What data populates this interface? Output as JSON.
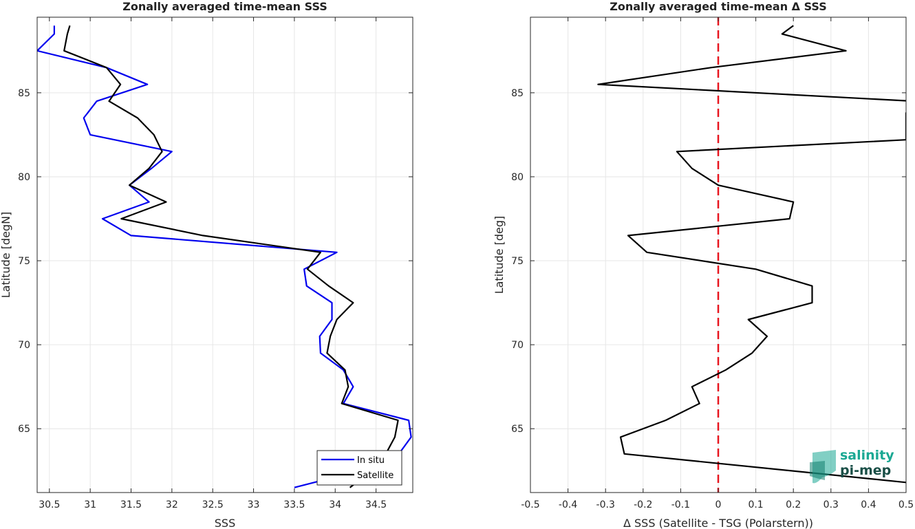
{
  "chart_data": [
    {
      "type": "line",
      "title": "Zonally averaged time-mean SSS",
      "xlabel": "SSS",
      "ylabel": "Latitude [degN]",
      "xlim": [
        30.35,
        34.95
      ],
      "ylim": [
        61.2,
        89.5
      ],
      "xticks": [
        30.5,
        31,
        31.5,
        32,
        32.5,
        33,
        33.5,
        34,
        34.5
      ],
      "xtick_labels": [
        "30.5",
        "31",
        "31.5",
        "32",
        "32.5",
        "33",
        "33.5",
        "34",
        "34.5"
      ],
      "yticks": [
        65,
        70,
        75,
        80,
        85
      ],
      "ytick_labels": [
        "65",
        "70",
        "75",
        "80",
        "85"
      ],
      "grid": true,
      "legend_position": "bottom-right",
      "series": [
        {
          "name": "In situ",
          "color": "#0000ee",
          "points": [
            [
              30.56,
              89.0
            ],
            [
              30.56,
              88.5
            ],
            [
              30.35,
              87.5
            ],
            [
              31.2,
              86.5
            ],
            [
              31.7,
              85.5
            ],
            [
              31.08,
              84.5
            ],
            [
              30.92,
              83.5
            ],
            [
              31.0,
              82.5
            ],
            [
              32.0,
              81.5
            ],
            [
              31.75,
              80.5
            ],
            [
              31.48,
              79.5
            ],
            [
              31.72,
              78.5
            ],
            [
              31.15,
              77.5
            ],
            [
              31.5,
              76.5
            ],
            [
              34.02,
              75.5
            ],
            [
              33.62,
              74.5
            ],
            [
              33.65,
              73.5
            ],
            [
              33.96,
              72.5
            ],
            [
              33.96,
              71.5
            ],
            [
              33.81,
              70.5
            ],
            [
              33.82,
              69.5
            ],
            [
              34.1,
              68.5
            ],
            [
              34.22,
              67.5
            ],
            [
              34.1,
              66.5
            ],
            [
              34.9,
              65.5
            ],
            [
              34.93,
              64.5
            ],
            [
              34.78,
              63.5
            ],
            [
              34.3,
              62.5
            ],
            [
              33.5,
              61.5
            ]
          ]
        },
        {
          "name": "Satellite",
          "color": "#000000",
          "points": [
            [
              30.75,
              89.0
            ],
            [
              30.72,
              88.5
            ],
            [
              30.68,
              87.5
            ],
            [
              31.2,
              86.5
            ],
            [
              31.37,
              85.5
            ],
            [
              31.23,
              84.5
            ],
            [
              31.58,
              83.5
            ],
            [
              31.78,
              82.5
            ],
            [
              31.88,
              81.5
            ],
            [
              31.72,
              80.5
            ],
            [
              31.48,
              79.5
            ],
            [
              31.93,
              78.5
            ],
            [
              31.38,
              77.5
            ],
            [
              32.38,
              76.5
            ],
            [
              33.82,
              75.5
            ],
            [
              33.66,
              74.5
            ],
            [
              33.92,
              73.5
            ],
            [
              34.22,
              72.5
            ],
            [
              34.02,
              71.5
            ],
            [
              33.94,
              70.5
            ],
            [
              33.9,
              69.5
            ],
            [
              34.12,
              68.5
            ],
            [
              34.16,
              67.5
            ],
            [
              34.08,
              66.5
            ],
            [
              34.77,
              65.5
            ],
            [
              34.73,
              64.5
            ],
            [
              34.62,
              63.5
            ],
            [
              34.45,
              62.5
            ],
            [
              34.18,
              61.5
            ]
          ]
        }
      ]
    },
    {
      "type": "line",
      "title": "Zonally averaged time-mean Δ SSS",
      "xlabel": "Δ SSS (Satellite - TSG (Polarstern))",
      "ylabel": "Latitude [deg]",
      "xlim": [
        -0.5,
        0.5
      ],
      "ylim": [
        61.2,
        89.5
      ],
      "xticks": [
        -0.5,
        -0.4,
        -0.3,
        -0.2,
        -0.1,
        0,
        0.1,
        0.2,
        0.3,
        0.4,
        0.5
      ],
      "xtick_labels": [
        "-0.5",
        "-0.4",
        "-0.3",
        "-0.2",
        "-0.1",
        "0",
        "0.1",
        "0.2",
        "0.3",
        "0.4",
        "0.5"
      ],
      "yticks": [
        65,
        70,
        75,
        80,
        85
      ],
      "ytick_labels": [
        "65",
        "70",
        "75",
        "80",
        "85"
      ],
      "grid": true,
      "reference_line": {
        "x": 0,
        "color": "#e8141e",
        "style": "dashed"
      },
      "series": [
        {
          "color": "#000000",
          "points": [
            [
              0.2,
              89.0
            ],
            [
              0.17,
              88.5
            ],
            [
              0.34,
              87.5
            ],
            [
              -0.02,
              86.5
            ],
            [
              -0.32,
              85.5
            ],
            [
              0.52,
              84.5
            ],
            [
              0.5,
              83.8
            ],
            [
              0.5,
              82.2
            ],
            [
              -0.11,
              81.5
            ],
            [
              -0.07,
              80.5
            ],
            [
              0.0,
              79.5
            ],
            [
              0.2,
              78.5
            ],
            [
              0.19,
              77.5
            ],
            [
              -0.24,
              76.5
            ],
            [
              -0.19,
              75.5
            ],
            [
              0.1,
              74.5
            ],
            [
              0.25,
              73.5
            ],
            [
              0.25,
              72.5
            ],
            [
              0.08,
              71.5
            ],
            [
              0.13,
              70.5
            ],
            [
              0.09,
              69.5
            ],
            [
              0.02,
              68.5
            ],
            [
              -0.07,
              67.5
            ],
            [
              -0.05,
              66.5
            ],
            [
              -0.14,
              65.5
            ],
            [
              -0.26,
              64.5
            ],
            [
              -0.25,
              63.5
            ],
            [
              0.5,
              61.8
            ]
          ]
        }
      ]
    }
  ],
  "logo": {
    "line1": "salinity",
    "line2": "pi-mep"
  }
}
